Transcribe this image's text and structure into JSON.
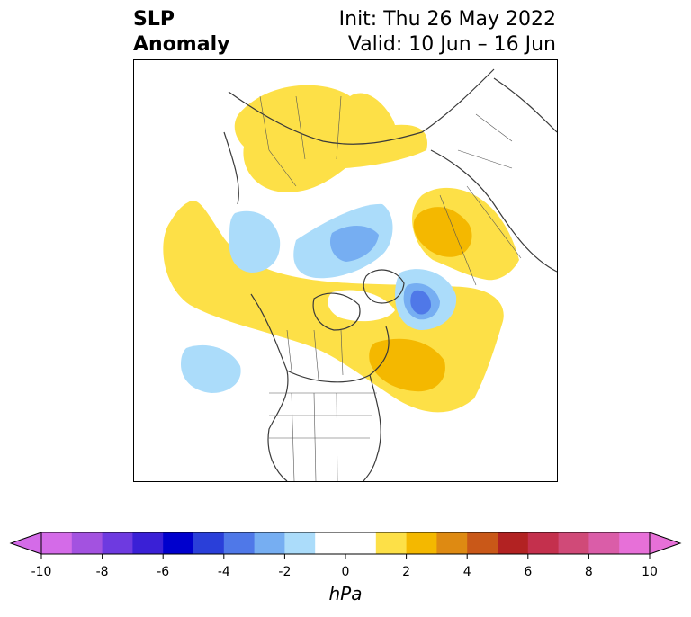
{
  "title": {
    "left_line1": "SLP",
    "left_line2": "Anomaly",
    "right_line1": "Init: Thu 26 May 2022",
    "right_line2": "Valid: 10 Jun – 16 Jun"
  },
  "colorbar": {
    "unit": "hPa",
    "ticks": [
      "-10",
      "-8",
      "-6",
      "-4",
      "-2",
      "0",
      "2",
      "4",
      "6",
      "8",
      "10"
    ],
    "bins": [
      "#d46be8",
      "#a352e0",
      "#6e3ae0",
      "#3a20d6",
      "#0000cd",
      "#2a3fd9",
      "#4f78e8",
      "#76aef2",
      "#abdcfa",
      "#ffffff",
      "#ffffff",
      "#fde047",
      "#f4b800",
      "#de8a12",
      "#c95818",
      "#b22222",
      "#c4304d",
      "#d04a78",
      "#da5da8",
      "#e770d8"
    ],
    "extend_low_color": "#d46be8",
    "extend_high_color": "#e770d8"
  },
  "map": {
    "projection": "north-polar-stereographic",
    "features": [
      "coastlines",
      "country-borders",
      "us-state-borders",
      "canada-province-borders"
    ]
  }
}
